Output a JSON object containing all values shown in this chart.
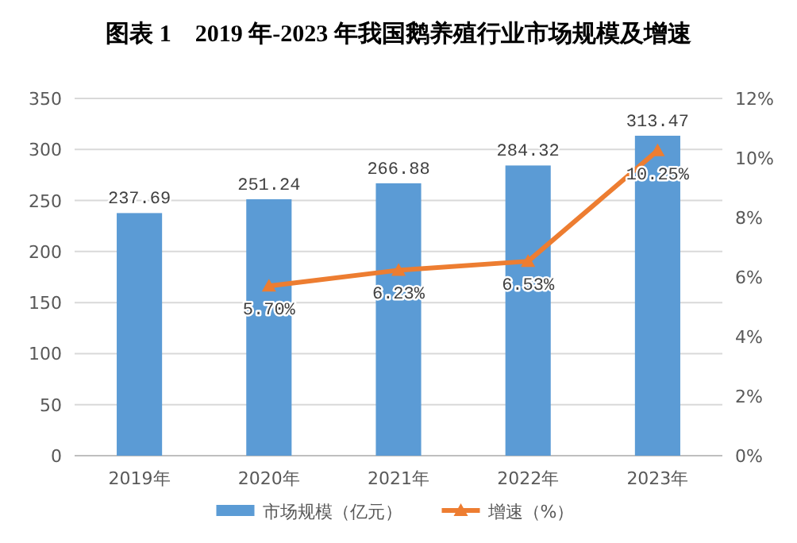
{
  "chart_data": {
    "type": "bar",
    "title": "图表 1    2019 年-2023 年我国鹅养殖行业市场规模及增速",
    "categories": [
      "2019年",
      "2020年",
      "2021年",
      "2022年",
      "2023年"
    ],
    "series": [
      {
        "name": "市场规模（亿元）",
        "color": "#5b9bd5",
        "values": [
          237.69,
          251.24,
          266.88,
          284.32,
          313.47
        ],
        "value_labels": [
          "237.69",
          "251.24",
          "266.88",
          "284.32",
          "313.47"
        ]
      },
      {
        "name": "增速（%）",
        "type": "line",
        "axis": "y2",
        "color": "#ed7d31",
        "marker": "triangle",
        "values": [
          null,
          5.7,
          6.23,
          6.53,
          10.25
        ],
        "value_labels": [
          null,
          "5.70%",
          "6.23%",
          "6.53%",
          "10.25%"
        ]
      }
    ],
    "ylim": [
      0,
      350
    ],
    "yticks": [
      0,
      50,
      100,
      150,
      200,
      250,
      300,
      350
    ],
    "y2lim": [
      0,
      12
    ],
    "y2ticks": [
      {
        "value": 0,
        "label": "0%"
      },
      {
        "value": 2,
        "label": "2%"
      },
      {
        "value": 4,
        "label": "4%"
      },
      {
        "value": 6,
        "label": "6%"
      },
      {
        "value": 8,
        "label": "8%"
      },
      {
        "value": 10,
        "label": "10%"
      },
      {
        "value": 12,
        "label": "12%"
      }
    ],
    "grid": "y",
    "legend": "bottom"
  }
}
